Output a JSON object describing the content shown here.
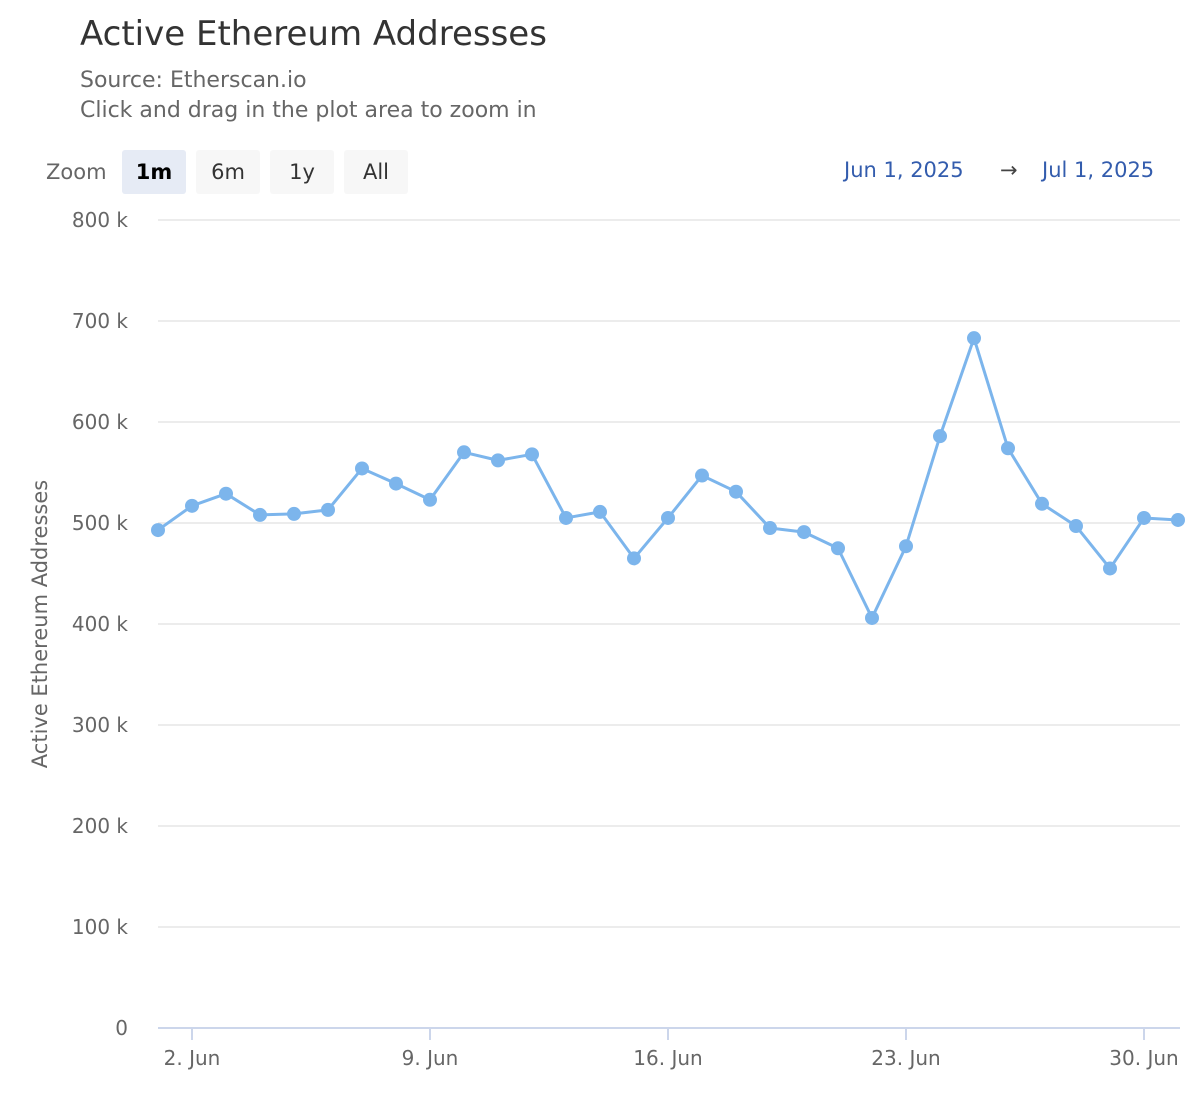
{
  "header": {
    "title": "Active Ethereum Addresses",
    "source": "Source: Etherscan.io",
    "hint": "Click and drag in the plot area to zoom in"
  },
  "zoom": {
    "label": "Zoom",
    "buttons": [
      "1m",
      "6m",
      "1y",
      "All"
    ],
    "selected": "1m"
  },
  "range": {
    "from": "Jun 1, 2025",
    "arrow": "→",
    "to": "Jul 1, 2025"
  },
  "colors": {
    "series": "#7cb5ec",
    "grid": "#e6e6e6",
    "axis": "#ccd6eb"
  },
  "chart_data": {
    "type": "line",
    "title": "Active Ethereum Addresses",
    "ylabel": "Active Ethereum Addresses",
    "ylim": [
      0,
      800000
    ],
    "yticks": [
      0,
      100000,
      200000,
      300000,
      400000,
      500000,
      600000,
      700000,
      800000
    ],
    "ytick_labels": [
      "0",
      "100 k",
      "200 k",
      "300 k",
      "400 k",
      "500 k",
      "600 k",
      "700 k",
      "800 k"
    ],
    "xticks": [
      2,
      9,
      16,
      23,
      30
    ],
    "xtick_labels": [
      "2. Jun",
      "9. Jun",
      "16. Jun",
      "23. Jun",
      "30. Jun"
    ],
    "xlim": [
      1,
      31
    ],
    "x_unit": "day (Jun 1 – Jul 1, 2025)",
    "series": [
      {
        "name": "Active Ethereum Addresses",
        "x": [
          1,
          2,
          3,
          4,
          5,
          6,
          7,
          8,
          9,
          10,
          11,
          12,
          13,
          14,
          15,
          16,
          17,
          18,
          19,
          20,
          21,
          22,
          23,
          24,
          25,
          26,
          27,
          28,
          29,
          30,
          31
        ],
        "values": [
          493000,
          517000,
          529000,
          508000,
          509000,
          513000,
          554000,
          539000,
          523000,
          570000,
          562000,
          568000,
          505000,
          511000,
          465000,
          505000,
          547000,
          531000,
          495000,
          491000,
          475000,
          406000,
          477000,
          586000,
          683000,
          574000,
          519000,
          497000,
          455000,
          505000,
          503000
        ]
      }
    ],
    "grid": true,
    "legend": "none"
  }
}
